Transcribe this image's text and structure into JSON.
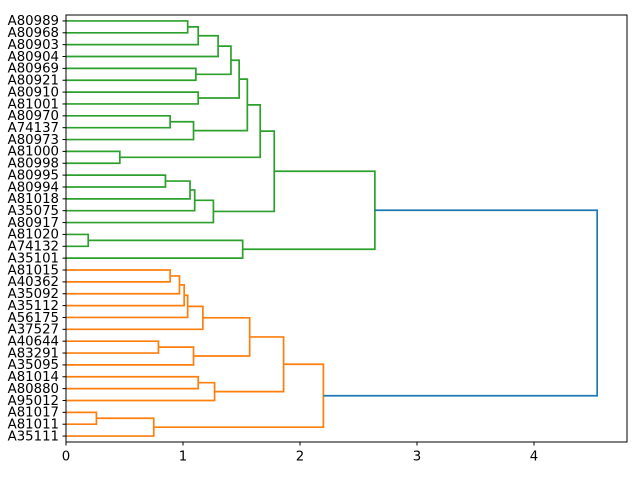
{
  "figure": {
    "background": "#ffffff"
  },
  "chart_data": {
    "type": "dendrogram",
    "orientation": "right",
    "title": "",
    "xlabel": "",
    "ylabel": "",
    "grid": false,
    "x_axis": {
      "ticks": [
        0,
        1,
        2,
        3,
        4
      ],
      "range": [
        0,
        4.795
      ]
    },
    "leaf_labels": [
      "A80989",
      "A80968",
      "A80903",
      "A80904",
      "A80969",
      "A80921",
      "A80910",
      "A81001",
      "A80970",
      "A74137",
      "A80973",
      "A81000",
      "A80998",
      "A80995",
      "A80994",
      "A81018",
      "A35075",
      "A80917",
      "A81020",
      "A74132",
      "A35101",
      "A81015",
      "A40362",
      "A35092",
      "A35112",
      "A56175",
      "A37527",
      "A40644",
      "A83291",
      "A35095",
      "A81014",
      "A80880",
      "A95012",
      "A81017",
      "A81011",
      "A35111"
    ],
    "links": [
      {
        "a": 0,
        "b": 1,
        "dist": 1.04,
        "color": "green"
      },
      {
        "a": 36,
        "b": 2,
        "dist": 1.13,
        "color": "green"
      },
      {
        "a": 37,
        "b": 3,
        "dist": 1.3,
        "color": "green"
      },
      {
        "a": 4,
        "b": 5,
        "dist": 1.11,
        "color": "green"
      },
      {
        "a": 38,
        "b": 39,
        "dist": 1.41,
        "color": "green"
      },
      {
        "a": 6,
        "b": 7,
        "dist": 1.13,
        "color": "green"
      },
      {
        "a": 40,
        "b": 41,
        "dist": 1.48,
        "color": "green"
      },
      {
        "a": 8,
        "b": 9,
        "dist": 0.89,
        "color": "green"
      },
      {
        "a": 43,
        "b": 10,
        "dist": 1.09,
        "color": "green"
      },
      {
        "a": 42,
        "b": 44,
        "dist": 1.55,
        "color": "green"
      },
      {
        "a": 11,
        "b": 12,
        "dist": 0.46,
        "color": "green"
      },
      {
        "a": 45,
        "b": 46,
        "dist": 1.66,
        "color": "green"
      },
      {
        "a": 13,
        "b": 14,
        "dist": 0.85,
        "color": "green"
      },
      {
        "a": 48,
        "b": 15,
        "dist": 1.06,
        "color": "green"
      },
      {
        "a": 49,
        "b": 16,
        "dist": 1.1,
        "color": "green"
      },
      {
        "a": 50,
        "b": 17,
        "dist": 1.26,
        "color": "green"
      },
      {
        "a": 47,
        "b": 51,
        "dist": 1.78,
        "color": "green"
      },
      {
        "a": 18,
        "b": 19,
        "dist": 0.19,
        "color": "green"
      },
      {
        "a": 53,
        "b": 20,
        "dist": 1.51,
        "color": "green"
      },
      {
        "a": 52,
        "b": 54,
        "dist": 2.64,
        "color": "green"
      },
      {
        "a": 21,
        "b": 22,
        "dist": 0.89,
        "color": "orange"
      },
      {
        "a": 56,
        "b": 23,
        "dist": 0.97,
        "color": "orange"
      },
      {
        "a": 57,
        "b": 24,
        "dist": 1.01,
        "color": "orange"
      },
      {
        "a": 58,
        "b": 25,
        "dist": 1.04,
        "color": "orange"
      },
      {
        "a": 59,
        "b": 26,
        "dist": 1.17,
        "color": "orange"
      },
      {
        "a": 27,
        "b": 28,
        "dist": 0.79,
        "color": "orange"
      },
      {
        "a": 61,
        "b": 29,
        "dist": 1.09,
        "color": "orange"
      },
      {
        "a": 60,
        "b": 62,
        "dist": 1.57,
        "color": "orange"
      },
      {
        "a": 30,
        "b": 31,
        "dist": 1.13,
        "color": "orange"
      },
      {
        "a": 64,
        "b": 32,
        "dist": 1.27,
        "color": "orange"
      },
      {
        "a": 63,
        "b": 65,
        "dist": 1.86,
        "color": "orange"
      },
      {
        "a": 33,
        "b": 34,
        "dist": 0.26,
        "color": "orange"
      },
      {
        "a": 67,
        "b": 35,
        "dist": 0.75,
        "color": "orange"
      },
      {
        "a": 66,
        "b": 68,
        "dist": 2.2,
        "color": "orange"
      },
      {
        "a": 55,
        "b": 69,
        "dist": 4.54,
        "color": "blue"
      }
    ],
    "colors": {
      "green": "#2ca02c",
      "orange": "#ff7f0e",
      "blue": "#1f77b4",
      "axis": "#000000"
    }
  }
}
